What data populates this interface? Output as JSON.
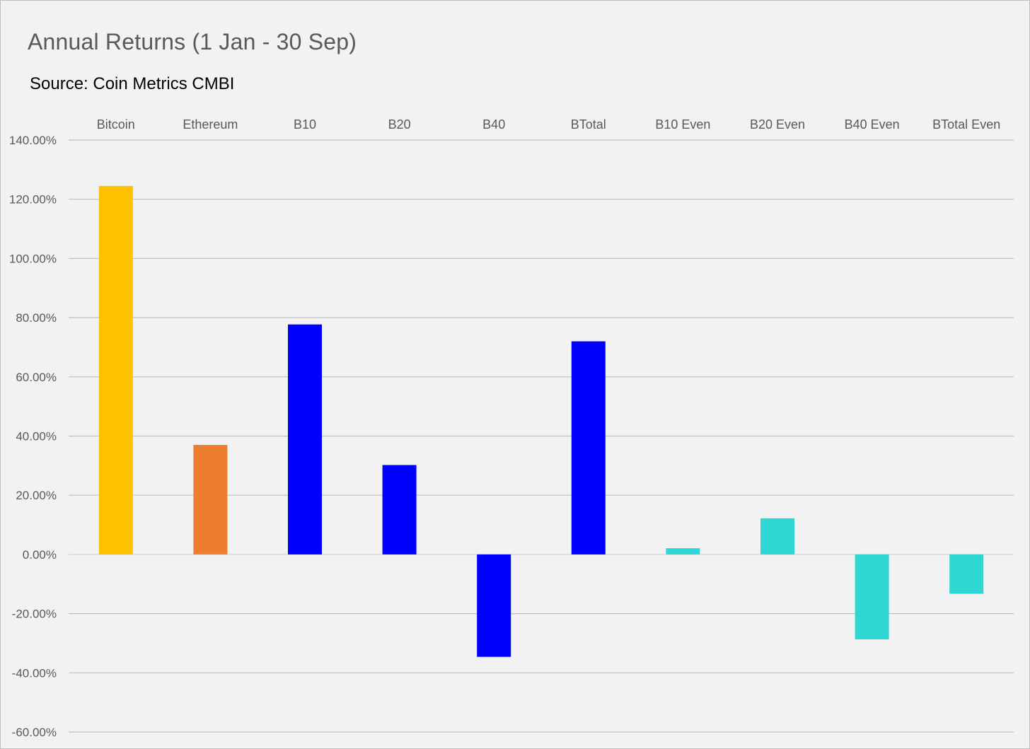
{
  "chart_data": {
    "type": "bar",
    "title": "Annual Returns (1 Jan - 30 Sep)",
    "subtitle": "Source: Coin Metrics CMBI",
    "categories": [
      "Bitcoin",
      "Ethereum",
      "B10",
      "B20",
      "B40",
      "BTotal",
      "B10 Even",
      "B20 Even",
      "B40 Even",
      "BTotal Even"
    ],
    "values": [
      124.5,
      37.0,
      77.7,
      30.2,
      -34.6,
      72.0,
      2.1,
      12.2,
      -28.7,
      -13.3
    ],
    "unit": "%",
    "ylim": [
      -60,
      140
    ],
    "yticks": [
      140,
      120,
      100,
      80,
      60,
      40,
      20,
      0,
      -20,
      -40,
      -60
    ],
    "ytick_labels": [
      "140.00%",
      "120.00%",
      "100.00%",
      "80.00%",
      "60.00%",
      "40.00%",
      "20.00%",
      "0.00%",
      "-20.00%",
      "-40.00%",
      "-60.00%"
    ],
    "xlabel": "",
    "ylabel": "",
    "category_axis_position": "top",
    "grid": true,
    "legend": "none",
    "bar_colors": [
      "#ffc000",
      "#ed7d31",
      "#0000ff",
      "#0000ff",
      "#0000ff",
      "#0000ff",
      "#2ed6d4",
      "#2ed6d4",
      "#2ed6d4",
      "#2ed6d4"
    ],
    "gridline_color": "#bfbfbf",
    "zero_line_color": "#d9d9d9",
    "background_color": "#f2f2f2"
  }
}
